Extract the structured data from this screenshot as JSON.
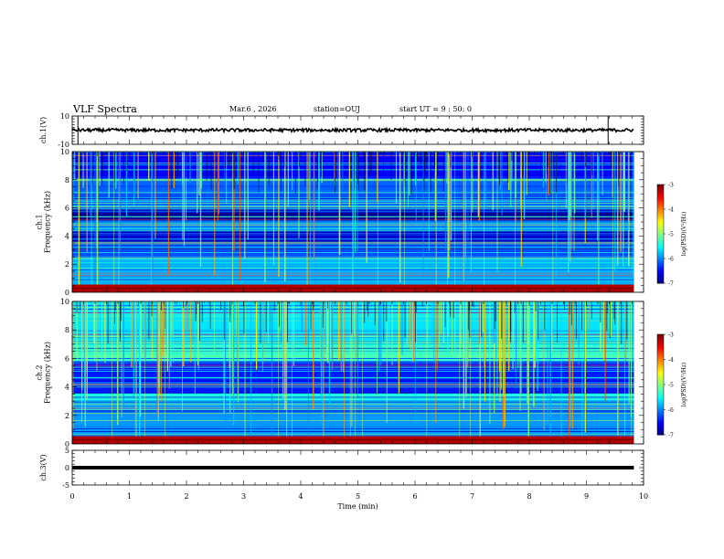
{
  "header": {
    "title": "VLF Spectra",
    "date": "Mar.6  , 2026",
    "station": "station=OUJ",
    "start_ut": "start  UT =   9 : 50: 0"
  },
  "chart_data": [
    {
      "type": "line",
      "panel": "ch1-waveform",
      "ylabel": "ch.1(V)",
      "ylim": [
        -10,
        10
      ],
      "yticks": [
        "10",
        "-10"
      ],
      "baseline": 0,
      "spikes_min": [
        0.1,
        9.38
      ],
      "trace_color": "#000000"
    },
    {
      "type": "heatmap",
      "panel": "ch1-spectrogram",
      "ylabel": "ch.1\nFrequency (kHz)",
      "ylim": [
        0,
        10
      ],
      "yticks": [
        "0",
        "2",
        "4",
        "6",
        "8",
        "10"
      ],
      "colorbar": {
        "label": "log(PSD)(V²/Hz)",
        "ticks": [
          "-3",
          "-4",
          "-5",
          "-6",
          "-7"
        ],
        "range": [
          -7,
          -3
        ]
      },
      "bands": [
        {
          "f0": 0,
          "f1": 0.5,
          "level": -3.5
        },
        {
          "f0": 0.5,
          "f1": 2.5,
          "level": -5.8
        },
        {
          "f0": 2.5,
          "f1": 3.6,
          "level": -6.2
        },
        {
          "f0": 3.6,
          "f1": 4.3,
          "level": -6.7
        },
        {
          "f0": 4.3,
          "f1": 5.1,
          "level": -6.0
        },
        {
          "f0": 5.1,
          "f1": 5.9,
          "level": -6.9
        },
        {
          "f0": 5.9,
          "f1": 8.0,
          "level": -6.1
        },
        {
          "f0": 8.0,
          "f1": 10,
          "level": -6.5
        }
      ],
      "spheric_density": 0.55
    },
    {
      "type": "heatmap",
      "panel": "ch2-spectrogram",
      "ylabel": "ch.2\nFrequency (kHz)",
      "ylim": [
        0,
        10
      ],
      "yticks": [
        "0",
        "2",
        "4",
        "6",
        "8",
        "10"
      ],
      "colorbar": {
        "label": "log(PSD)(V²/Hz)",
        "ticks": [
          "-3",
          "-4",
          "-5",
          "-6",
          "-7"
        ],
        "range": [
          -7,
          -3
        ]
      },
      "bands": [
        {
          "f0": 0,
          "f1": 0.5,
          "level": -4.0
        },
        {
          "f0": 0.5,
          "f1": 3.0,
          "level": -5.9
        },
        {
          "f0": 3.0,
          "f1": 3.6,
          "level": -5.4
        },
        {
          "f0": 3.6,
          "f1": 5.8,
          "level": -6.4
        },
        {
          "f0": 5.8,
          "f1": 7.0,
          "level": -5.3
        },
        {
          "f0": 7.0,
          "f1": 10,
          "level": -5.6
        }
      ],
      "spheric_density": 0.75
    },
    {
      "type": "line",
      "panel": "ch3-waveform",
      "ylabel": "ch.3(V)",
      "ylim": [
        -5,
        5
      ],
      "yticks": [
        "5",
        "0",
        "-5"
      ],
      "baseline": 0,
      "trace_color": "#000000"
    }
  ],
  "xaxis": {
    "label": "Time  (min)",
    "range": [
      0,
      10
    ],
    "ticks": [
      "0",
      "1",
      "2",
      "3",
      "4",
      "5",
      "6",
      "7",
      "8",
      "9",
      "10"
    ],
    "data_end": 9.83
  }
}
